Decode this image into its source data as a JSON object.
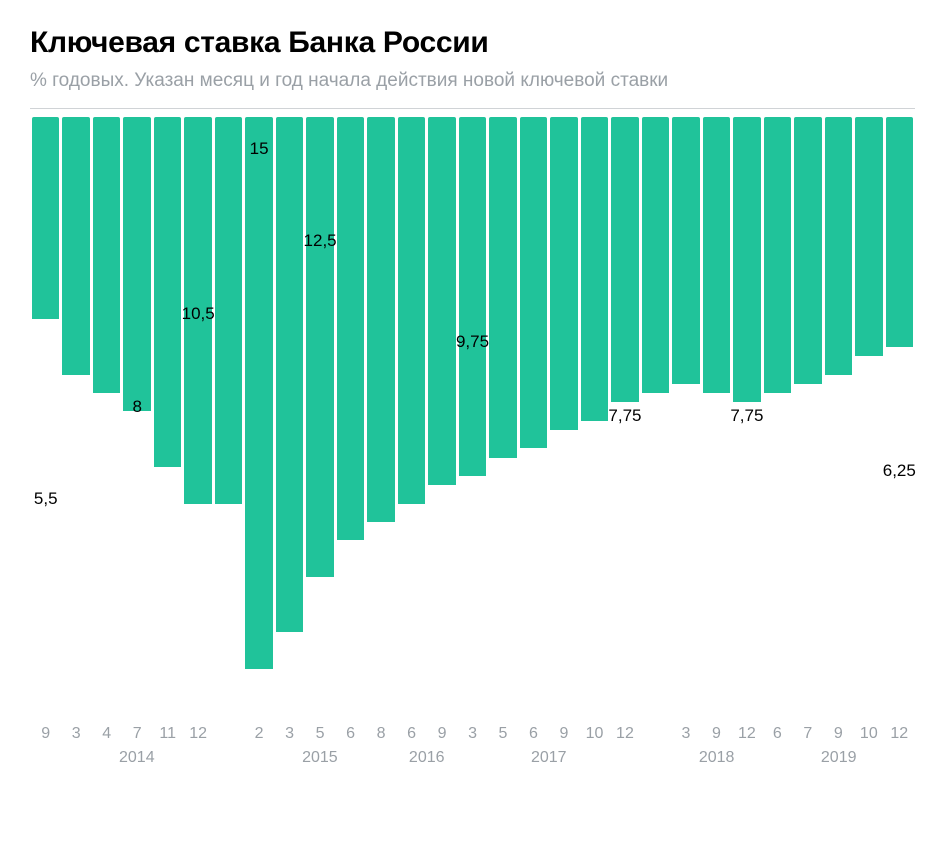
{
  "title": "Ключевая ставка Банка России",
  "subtitle": "% годовых. Указан месяц и год начала действия новой ключевой ставки",
  "chart": {
    "type": "bar",
    "bar_color": "#20c39a",
    "background_color": "#ffffff",
    "text_color": "#000000",
    "muted_color": "#9aa0a6",
    "divider_color": "#d0d3d6",
    "title_fontsize": 30,
    "subtitle_fontsize": 19,
    "label_fontsize": 17,
    "axis_fontsize": 16,
    "ymax": 16.3,
    "data": [
      {
        "value": 5.5,
        "month": "9",
        "year": "",
        "label": "5,5"
      },
      {
        "value": 7.0,
        "month": "3",
        "year": "2014",
        "label": ""
      },
      {
        "value": 7.5,
        "month": "4",
        "year": "2014",
        "label": ""
      },
      {
        "value": 8.0,
        "month": "7",
        "year": "2014",
        "label": "8"
      },
      {
        "value": 9.5,
        "month": "11",
        "year": "2014",
        "label": ""
      },
      {
        "value": 10.5,
        "month": "12",
        "year": "2014",
        "label": "10,5"
      },
      {
        "value": 10.5,
        "month": "",
        "year": "",
        "label": ""
      },
      {
        "value": 15.0,
        "month": "2",
        "year": "2015",
        "label": "15"
      },
      {
        "value": 14.0,
        "month": "3",
        "year": "2015",
        "label": ""
      },
      {
        "value": 12.5,
        "month": "5",
        "year": "2015",
        "label": "12,5"
      },
      {
        "value": 11.5,
        "month": "6",
        "year": "2015",
        "label": ""
      },
      {
        "value": 11.0,
        "month": "8",
        "year": "2015",
        "label": ""
      },
      {
        "value": 10.5,
        "month": "6",
        "year": "2016",
        "label": ""
      },
      {
        "value": 10.0,
        "month": "9",
        "year": "2016",
        "label": ""
      },
      {
        "value": 9.75,
        "month": "3",
        "year": "2017",
        "label": "9,75"
      },
      {
        "value": 9.25,
        "month": "5",
        "year": "2017",
        "label": ""
      },
      {
        "value": 9.0,
        "month": "6",
        "year": "2017",
        "label": ""
      },
      {
        "value": 8.5,
        "month": "9",
        "year": "2017",
        "label": ""
      },
      {
        "value": 8.25,
        "month": "10",
        "year": "2017",
        "label": ""
      },
      {
        "value": 7.75,
        "month": "12",
        "year": "2017",
        "label": "7,75"
      },
      {
        "value": 7.5,
        "month": "",
        "year": "",
        "label": ""
      },
      {
        "value": 7.25,
        "month": "3",
        "year": "2018",
        "label": ""
      },
      {
        "value": 7.5,
        "month": "9",
        "year": "2018",
        "label": ""
      },
      {
        "value": 7.75,
        "month": "12",
        "year": "2018",
        "label": "7,75"
      },
      {
        "value": 7.5,
        "month": "6",
        "year": "2019",
        "label": ""
      },
      {
        "value": 7.25,
        "month": "7",
        "year": "2019",
        "label": ""
      },
      {
        "value": 7.0,
        "month": "9",
        "year": "2019",
        "label": ""
      },
      {
        "value": 6.5,
        "month": "10",
        "year": "2019",
        "label": ""
      },
      {
        "value": 6.25,
        "month": "12",
        "year": "2019",
        "label": "6,25"
      }
    ]
  }
}
